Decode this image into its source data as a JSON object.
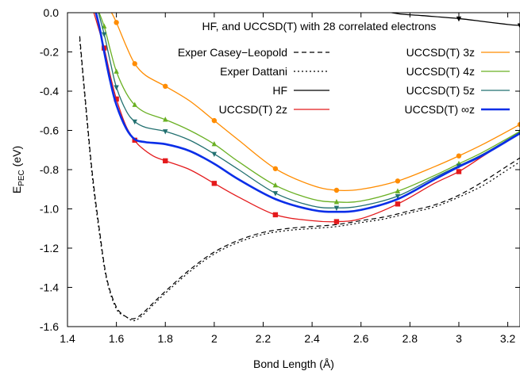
{
  "chart_data": {
    "type": "line",
    "title": "HF, and UCCSD(T) with 28 correlated electrons",
    "xlabel": "Bond Length (Å)",
    "ylabel": {
      "main": "E",
      "sub": "PEC",
      "rest": " (eV)"
    },
    "xlim": [
      1.4,
      3.25
    ],
    "ylim": [
      -1.6,
      0.0
    ],
    "xticks": [
      1.4,
      1.6,
      1.8,
      2.0,
      2.2,
      2.4,
      2.6,
      2.8,
      3.0,
      3.2
    ],
    "xtick_labels": [
      "1.4",
      "1.6",
      "1.8",
      "2",
      "2.2",
      "2.4",
      "2.6",
      "2.8",
      "3",
      "3.2"
    ],
    "yticks": [
      0.0,
      -0.2,
      -0.4,
      -0.6,
      -0.8,
      -1.0,
      -1.2,
      -1.4,
      -1.6
    ],
    "ytick_labels": [
      "0.0",
      "-0.2",
      "-0.4",
      "-0.6",
      "-0.8",
      "-1.0",
      "-1.2",
      "-1.4",
      "-1.6"
    ],
    "grid": false,
    "series": [
      {
        "name": "Exper Casey−Leopold",
        "color": "#000000",
        "dash": "6,4",
        "width": 1.2,
        "marker": "none",
        "x": [
          1.45,
          1.47,
          1.5,
          1.53,
          1.56,
          1.6,
          1.64,
          1.67,
          1.7,
          1.75,
          1.8,
          1.9,
          2.0,
          2.1,
          2.2,
          2.3,
          2.4,
          2.5,
          2.6,
          2.7,
          2.8,
          2.9,
          3.0,
          3.1,
          3.2,
          3.25
        ],
        "y": [
          -0.12,
          -0.4,
          -0.8,
          -1.1,
          -1.35,
          -1.5,
          -1.55,
          -1.56,
          -1.54,
          -1.48,
          -1.42,
          -1.31,
          -1.22,
          -1.16,
          -1.12,
          -1.1,
          -1.09,
          -1.08,
          -1.06,
          -1.04,
          -1.01,
          -0.98,
          -0.93,
          -0.86,
          -0.78,
          -0.74
        ]
      },
      {
        "name": "Exper Dattani",
        "color": "#000000",
        "dash": "2,3",
        "width": 1.2,
        "marker": "none",
        "x": [
          1.45,
          1.47,
          1.5,
          1.53,
          1.56,
          1.6,
          1.64,
          1.67,
          1.7,
          1.75,
          1.8,
          1.9,
          2.0,
          2.1,
          2.2,
          2.3,
          2.4,
          2.5,
          2.6,
          2.7,
          2.8,
          2.9,
          3.0,
          3.1,
          3.2,
          3.25
        ],
        "y": [
          -0.14,
          -0.42,
          -0.82,
          -1.12,
          -1.36,
          -1.51,
          -1.55,
          -1.57,
          -1.55,
          -1.49,
          -1.43,
          -1.32,
          -1.23,
          -1.17,
          -1.13,
          -1.11,
          -1.1,
          -1.09,
          -1.07,
          -1.05,
          -1.02,
          -0.99,
          -0.94,
          -0.88,
          -0.8,
          -0.76
        ]
      },
      {
        "name": "HF",
        "color": "#000000",
        "dash": "",
        "width": 1.3,
        "marker": "triangle-down",
        "markers_x": [
          3.0,
          3.25
        ],
        "x": [
          2.65,
          2.75,
          2.85,
          3.0,
          3.1,
          3.2,
          3.25
        ],
        "y": [
          0.02,
          -0.005,
          -0.015,
          -0.03,
          -0.045,
          -0.06,
          -0.065
        ]
      },
      {
        "name": "UCCSD(T) 2z",
        "color": "#e41a1c",
        "dash": "",
        "width": 1.3,
        "marker": "square",
        "markers_x": [
          1.55,
          1.6,
          1.675,
          1.8,
          2.0,
          2.25,
          2.5,
          2.75,
          3.0
        ],
        "x": [
          1.5,
          1.52,
          1.55,
          1.575,
          1.6,
          1.64,
          1.675,
          1.7,
          1.75,
          1.8,
          1.9,
          2.0,
          2.1,
          2.25,
          2.4,
          2.5,
          2.6,
          2.75,
          2.9,
          3.0,
          3.1,
          3.25
        ],
        "y": [
          0.03,
          -0.05,
          -0.18,
          -0.32,
          -0.44,
          -0.58,
          -0.65,
          -0.685,
          -0.73,
          -0.755,
          -0.8,
          -0.87,
          -0.94,
          -1.03,
          -1.06,
          -1.065,
          -1.05,
          -0.975,
          -0.87,
          -0.81,
          -0.73,
          -0.61
        ]
      },
      {
        "name": "UCCSD(T) 3z",
        "color": "#ff8c00",
        "dash": "",
        "width": 1.3,
        "marker": "circle",
        "markers_x": [
          1.6,
          1.675,
          1.8,
          2.0,
          2.25,
          2.5,
          2.75,
          3.0,
          3.25
        ],
        "x": [
          1.56,
          1.58,
          1.6,
          1.64,
          1.675,
          1.72,
          1.8,
          1.9,
          2.0,
          2.1,
          2.25,
          2.4,
          2.5,
          2.6,
          2.75,
          2.9,
          3.0,
          3.1,
          3.25
        ],
        "y": [
          0.03,
          0.0,
          -0.05,
          -0.17,
          -0.26,
          -0.32,
          -0.375,
          -0.45,
          -0.55,
          -0.65,
          -0.795,
          -0.88,
          -0.905,
          -0.9,
          -0.858,
          -0.785,
          -0.73,
          -0.67,
          -0.57
        ]
      },
      {
        "name": "UCCSD(T) 4z",
        "color": "#6ab023",
        "dash": "",
        "width": 1.3,
        "marker": "triangle-up",
        "markers_x": [
          1.55,
          1.6,
          1.675,
          1.8,
          2.0,
          2.25,
          2.5,
          2.75,
          3.0,
          3.25
        ],
        "x": [
          1.52,
          1.55,
          1.575,
          1.6,
          1.64,
          1.675,
          1.72,
          1.8,
          1.9,
          2.0,
          2.1,
          2.25,
          2.4,
          2.5,
          2.6,
          2.75,
          2.9,
          3.0,
          3.1,
          3.25
        ],
        "y": [
          0.03,
          -0.07,
          -0.19,
          -0.3,
          -0.41,
          -0.47,
          -0.51,
          -0.545,
          -0.6,
          -0.67,
          -0.76,
          -0.88,
          -0.95,
          -0.965,
          -0.96,
          -0.91,
          -0.83,
          -0.77,
          -0.71,
          -0.605
        ]
      },
      {
        "name": "UCCSD(T) 5z",
        "color": "#227070",
        "dash": "",
        "width": 1.3,
        "marker": "triangle-down",
        "markers_x": [
          1.55,
          1.6,
          1.675,
          1.8,
          2.0,
          2.25,
          2.5,
          2.75,
          3.0
        ],
        "x": [
          1.52,
          1.55,
          1.575,
          1.6,
          1.64,
          1.675,
          1.72,
          1.8,
          1.9,
          2.0,
          2.1,
          2.25,
          2.4,
          2.5,
          2.6,
          2.75,
          2.9,
          3.0,
          3.1,
          3.25
        ],
        "y": [
          0.03,
          -0.11,
          -0.25,
          -0.38,
          -0.5,
          -0.555,
          -0.585,
          -0.605,
          -0.65,
          -0.72,
          -0.8,
          -0.92,
          -0.985,
          -0.995,
          -0.985,
          -0.935,
          -0.84,
          -0.78,
          -0.72,
          -0.61
        ]
      },
      {
        "name": "UCCSD(T) ∞z",
        "color": "#0a2ee8",
        "dash": "",
        "width": 2.6,
        "marker": "none",
        "x": [
          1.51,
          1.53,
          1.55,
          1.575,
          1.6,
          1.64,
          1.675,
          1.72,
          1.8,
          1.9,
          2.0,
          2.1,
          2.25,
          2.4,
          2.5,
          2.6,
          2.75,
          2.9,
          3.0,
          3.1,
          3.25
        ],
        "y": [
          0.03,
          -0.07,
          -0.2,
          -0.35,
          -0.47,
          -0.59,
          -0.645,
          -0.66,
          -0.67,
          -0.705,
          -0.77,
          -0.85,
          -0.95,
          -1.005,
          -1.015,
          -1.005,
          -0.95,
          -0.85,
          -0.785,
          -0.725,
          -0.615
        ]
      }
    ],
    "legend": {
      "left": [
        "Exper Casey−Leopold",
        "Exper Dattani",
        "HF",
        "UCCSD(T) 2z"
      ],
      "right": [
        "UCCSD(T) 3z",
        "UCCSD(T) 4z",
        "UCCSD(T) 5z",
        "UCCSD(T) ∞z"
      ]
    }
  }
}
